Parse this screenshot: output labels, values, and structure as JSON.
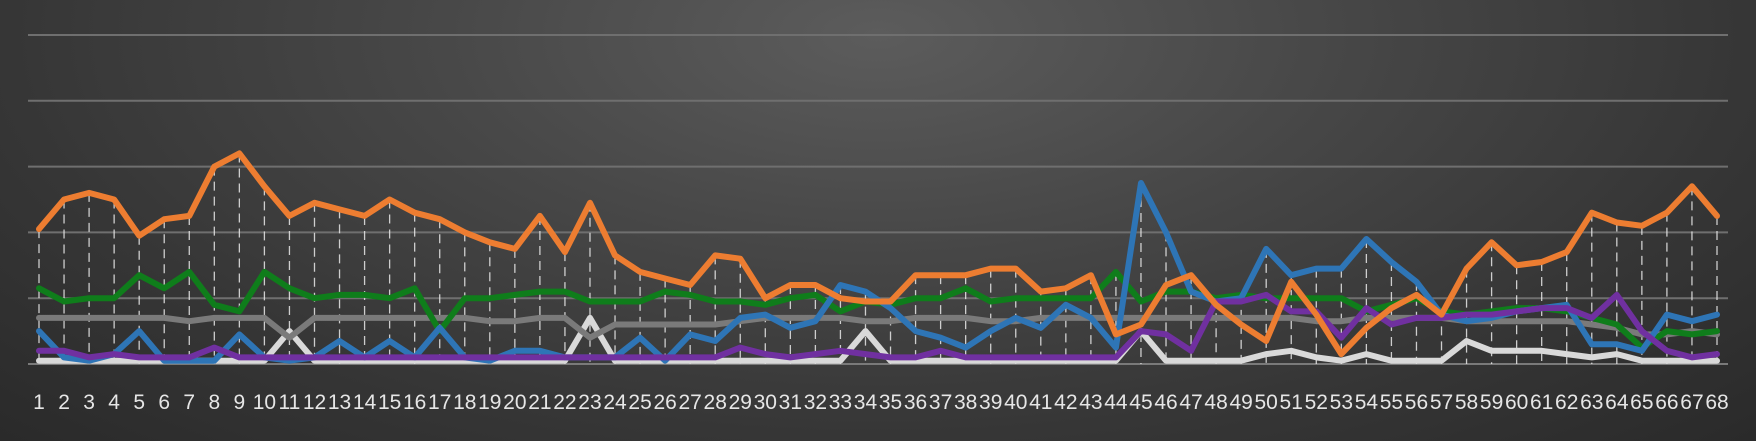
{
  "chart_data": {
    "type": "line",
    "title": "",
    "xlabel": "",
    "ylabel": "",
    "ylim": [
      0,
      50
    ],
    "grid": true,
    "legend": "none",
    "categories": [
      "1",
      "2",
      "3",
      "4",
      "5",
      "6",
      "7",
      "8",
      "9",
      "10",
      "11",
      "12",
      "13",
      "14",
      "15",
      "16",
      "17",
      "18",
      "19",
      "20",
      "21",
      "22",
      "23",
      "24",
      "25",
      "26",
      "27",
      "28",
      "29",
      "30",
      "31",
      "32",
      "33",
      "34",
      "35",
      "36",
      "37",
      "38",
      "39",
      "40",
      "41",
      "42",
      "43",
      "44",
      "45",
      "46",
      "47",
      "48",
      "49",
      "50",
      "51",
      "52",
      "53",
      "54",
      "55",
      "56",
      "57",
      "58",
      "59",
      "60",
      "61",
      "62",
      "63",
      "64",
      "65",
      "66",
      "67",
      "68"
    ],
    "series": [
      {
        "color": "#ed7d31",
        "values": [
          20.5,
          25,
          26,
          25,
          19.5,
          22,
          22.5,
          30,
          32,
          27,
          22.5,
          24.5,
          23.5,
          22.5,
          25,
          23,
          22,
          20,
          18.5,
          17.5,
          22.5,
          17,
          24.5,
          16.5,
          14,
          13,
          12,
          16.5,
          16,
          10,
          12,
          12,
          10,
          9.5,
          9.5,
          13.5,
          13.5,
          13.5,
          14.5,
          14.5,
          11,
          11.5,
          13.5,
          4.5,
          6,
          12,
          13.5,
          9,
          6,
          3.5,
          12.5,
          7.5,
          1.5,
          5.5,
          8.5,
          10.5,
          7.5,
          14.5,
          18.5,
          15,
          15.5,
          17,
          23,
          21.5,
          21,
          23,
          27,
          22.5
        ]
      },
      {
        "color": "#0f7d1b",
        "values": [
          11.5,
          9.5,
          10,
          10,
          13.5,
          11.5,
          14,
          9,
          8,
          14,
          11.5,
          10,
          10.5,
          10.5,
          10,
          11.5,
          5,
          10,
          10,
          10.5,
          11,
          11,
          9.5,
          9.5,
          9.5,
          11,
          10.5,
          9.5,
          9.5,
          9,
          10,
          10.5,
          8,
          9.5,
          9,
          10,
          10,
          11.5,
          9.5,
          10,
          10,
          10,
          10,
          14,
          9.5,
          11,
          11,
          10,
          10.5,
          10,
          10,
          10,
          10,
          8,
          9,
          10,
          8,
          7.5,
          8,
          8.5,
          8.5,
          8,
          7,
          6,
          2.5,
          5,
          4.5,
          5
        ]
      },
      {
        "color": "#2e75b6",
        "values": [
          5,
          1,
          0.5,
          1.5,
          5,
          0.5,
          0.5,
          0.5,
          4.5,
          1,
          0.5,
          1,
          3.5,
          1,
          3.5,
          1,
          5.5,
          1,
          0.5,
          2,
          2,
          1,
          1,
          1,
          4,
          0.5,
          4.5,
          3.5,
          7,
          7.5,
          5.5,
          6.5,
          12,
          11,
          8.5,
          5,
          4,
          2.5,
          5,
          7,
          5.5,
          9,
          7,
          2.5,
          27.5,
          20,
          11,
          9.5,
          10,
          17.5,
          13.5,
          14.5,
          14.5,
          19,
          15.5,
          12.5,
          7.5,
          6.5,
          7,
          8,
          8.5,
          9,
          3,
          3,
          2,
          7.5,
          6.5,
          7.5
        ]
      },
      {
        "color": "#7a7a7a",
        "values": [
          7,
          7,
          7,
          7,
          7,
          7,
          6.5,
          7,
          7,
          7,
          4,
          7,
          7,
          7,
          7,
          7,
          7,
          7,
          6.5,
          6.5,
          7,
          7,
          4,
          6,
          6,
          6,
          6,
          6,
          6.5,
          7,
          7,
          7,
          7,
          6.5,
          6.5,
          7,
          7,
          7,
          6.5,
          6.5,
          7,
          7,
          7,
          7,
          7,
          7,
          7,
          7,
          7,
          7,
          7,
          6.5,
          6.5,
          7,
          7,
          7,
          7,
          6.5,
          6.5,
          6.5,
          6.5,
          6.5,
          6,
          5.5,
          4.5,
          4.5,
          5,
          4.5
        ]
      },
      {
        "color": "#d9d9d9",
        "values": [
          0.5,
          0.5,
          0.5,
          0.5,
          0.5,
          0.5,
          0.5,
          0.5,
          0.5,
          0.5,
          5,
          0.5,
          0.5,
          0.5,
          0.5,
          0.5,
          0.5,
          0.5,
          0.5,
          0.5,
          0.5,
          0.5,
          7,
          0.5,
          0.5,
          0.5,
          0.5,
          0.5,
          0.5,
          0.5,
          0.5,
          0.5,
          0.5,
          5,
          0.5,
          0.5,
          0.5,
          0.5,
          0.5,
          0.5,
          0.5,
          0.5,
          0.5,
          0.5,
          5,
          0.5,
          0.5,
          0.5,
          0.5,
          1.5,
          2,
          1,
          0.5,
          1.5,
          0.5,
          0.5,
          0.5,
          3.5,
          2,
          2,
          2,
          1.5,
          1,
          1.5,
          0.5,
          0.5,
          0.5,
          0.5
        ]
      },
      {
        "color": "#7030a0",
        "values": [
          2,
          2,
          1,
          1.5,
          1,
          1,
          1,
          2.5,
          1,
          1,
          1,
          1,
          1,
          1,
          1,
          1,
          1,
          1,
          1,
          1,
          1,
          1,
          1,
          1,
          1,
          1,
          1,
          1,
          2.5,
          1.5,
          1,
          1.5,
          2,
          1.5,
          1,
          1,
          2,
          1,
          1,
          1,
          1,
          1,
          1,
          1,
          5,
          4.5,
          2,
          9.5,
          9.5,
          10.5,
          8,
          8,
          4,
          8.5,
          6,
          7,
          7,
          7.5,
          7.5,
          8,
          8.5,
          8.5,
          7,
          10.5,
          5,
          2,
          1,
          1.5
        ]
      }
    ]
  }
}
